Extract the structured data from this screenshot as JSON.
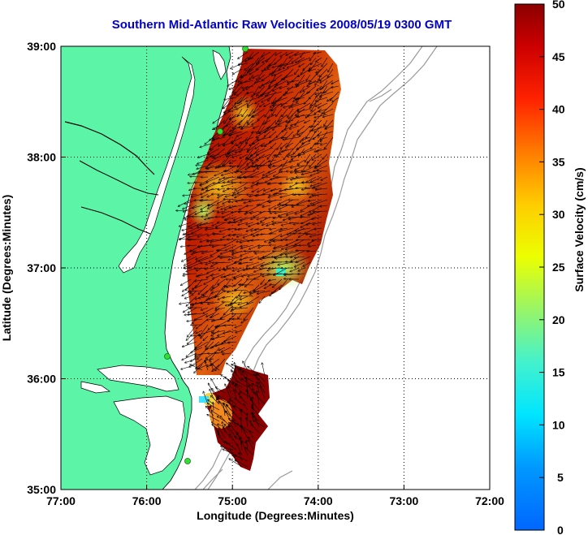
{
  "title": "Southern Mid-Atlantic Raw Velocities 2008/05/19 0300 GMT",
  "map": {
    "xlabel": "Longitude (Degrees:Minutes)",
    "ylabel": "Latitude (Degrees:Minutes)",
    "x_ticks": [
      "77:00",
      "76:00",
      "75:00",
      "74:00",
      "73:00",
      "72:00"
    ],
    "y_ticks": [
      "39:00",
      "38:00",
      "37:00",
      "36:00",
      "35:00"
    ],
    "xlim": [
      -77,
      -72
    ],
    "ylim": [
      35,
      39
    ],
    "grid": "dotted",
    "land_color": "#5cf5a8",
    "coast_color": "#000000",
    "bathymetry_color": "#999999",
    "site_marker_color": "#33dd33"
  },
  "colorbar": {
    "label": "Surface Velocity (cm/s)",
    "ticks": [
      "50",
      "45",
      "40",
      "35",
      "30",
      "25",
      "20",
      "15",
      "10",
      "5",
      "0"
    ],
    "range": [
      0,
      50
    ],
    "colormap": "jet"
  }
}
